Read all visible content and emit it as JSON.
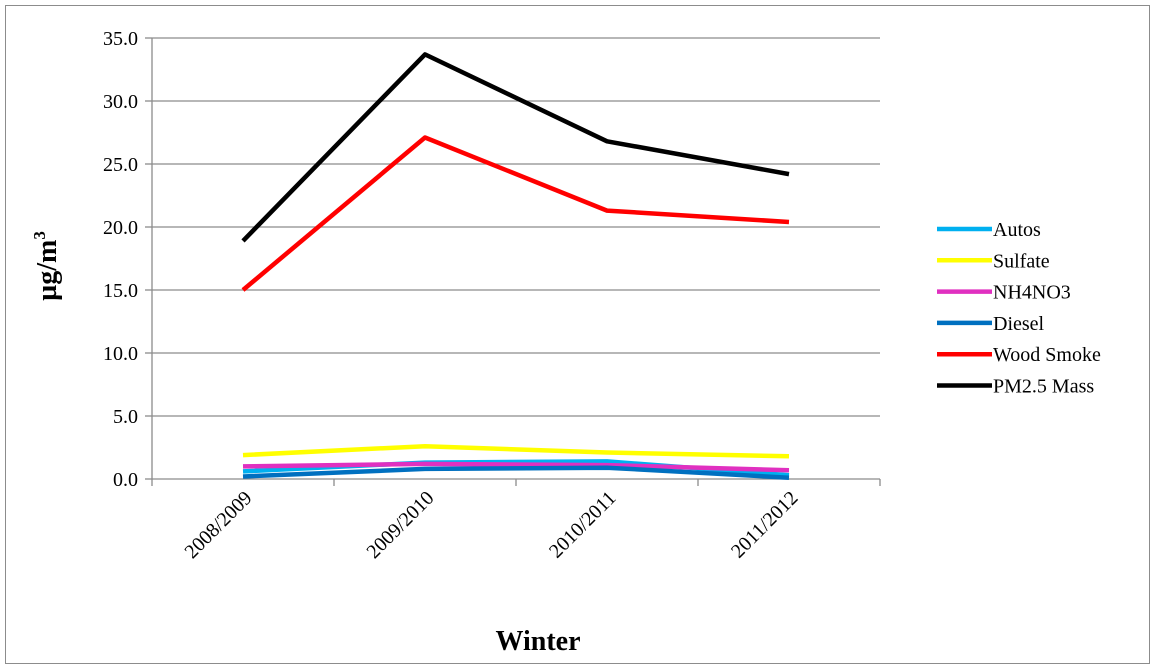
{
  "chart_data": {
    "type": "line",
    "title": "",
    "xlabel": "Winter",
    "ylabel_main": "µg/m",
    "ylabel_sup": "3",
    "categories": [
      "2008/2009",
      "2009/2010",
      "2010/2011",
      "2011/2012"
    ],
    "ylim": [
      0,
      35
    ],
    "yticks": [
      "0.0",
      "5.0",
      "10.0",
      "15.0",
      "20.0",
      "25.0",
      "30.0",
      "35.0"
    ],
    "grid": true,
    "legend_position": "right",
    "series": [
      {
        "name": "Autos",
        "color": "#00b0f0",
        "values": [
          0.6,
          1.3,
          1.4,
          0.3
        ]
      },
      {
        "name": "Sulfate",
        "color": "#ffff00",
        "values": [
          1.9,
          2.6,
          2.1,
          1.8
        ]
      },
      {
        "name": "NH4NO3",
        "color": "#e030c0",
        "values": [
          1.0,
          1.2,
          1.1,
          0.7
        ]
      },
      {
        "name": "Diesel",
        "color": "#0070c0",
        "values": [
          0.2,
          0.8,
          0.9,
          0.1
        ]
      },
      {
        "name": "Wood Smoke",
        "color": "#ff0000",
        "values": [
          15.0,
          27.1,
          21.3,
          20.4
        ]
      },
      {
        "name": "PM2.5 Mass",
        "color": "#000000",
        "values": [
          18.9,
          33.7,
          26.8,
          24.2
        ]
      }
    ]
  }
}
